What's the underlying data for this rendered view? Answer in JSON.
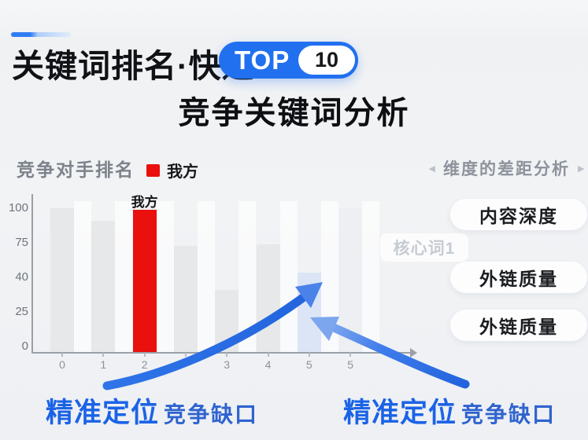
{
  "header": {
    "title": "关键词排名·快速",
    "top_badge": {
      "label": "TOP",
      "number": "10"
    },
    "subtitle": "竞争关键词分析"
  },
  "chart_data": {
    "type": "bar",
    "title": "竞争对手排名",
    "legend": [
      {
        "name": "我方",
        "color": "#e9100e"
      }
    ],
    "legend_position": "top",
    "grid": false,
    "ylim": [
      0,
      100
    ],
    "y_tick_labels": [
      "100",
      "75",
      "40",
      "25",
      "0"
    ],
    "x_tick_labels": [
      "0",
      "1",
      "2",
      "",
      "3",
      "4",
      "5",
      "5",
      ""
    ],
    "bars": [
      {
        "x_label": "0",
        "value": 100,
        "series": "competitor"
      },
      {
        "x_label": "1",
        "value": 91,
        "series": "competitor"
      },
      {
        "x_label": "2",
        "value": 99,
        "series": "ours",
        "label": "我方"
      },
      {
        "x_label": "",
        "value": 74,
        "series": "competitor"
      },
      {
        "x_label": "3",
        "value": 43,
        "series": "competitor"
      },
      {
        "x_label": "4",
        "value": 75,
        "series": "competitor"
      },
      {
        "x_label": "5",
        "value": 55,
        "series": "highlight"
      },
      {
        "x_label": "5",
        "value": 100,
        "series": "ghost"
      }
    ]
  },
  "dimension_panel": {
    "title": "维度的差距分析",
    "left_arrow_icon": "◀",
    "right_arrow_icon": "▶",
    "items": [
      "内容深度",
      "外链质量",
      "外链质量"
    ],
    "floating_tag": "核心词1"
  },
  "annotations": [
    {
      "highlight": "精准定位",
      "rest": "竞争缺口"
    },
    {
      "highlight": "精准定位",
      "rest": "竞争缺口"
    }
  ],
  "colors": {
    "accent_blue": "#2f7bf2",
    "badge_blue": "#2170f0",
    "our_red": "#e9100e",
    "bar_gray": "#e6e8ea",
    "bar_highlight_blue": "#dce5f6",
    "bar_ghost_gray": "#edeff2",
    "arrow_blue": "#2b6fe6",
    "arrow_blue_light": "#8fb1f0",
    "annotation_blue": "#1b63e6",
    "annotation_blue_dark": "#2f63cf",
    "axis_gray": "#9aa0a8",
    "panel_title_gray": "#7d838b",
    "dim_header_gray": "#8d939c",
    "faint_tag_gray": "#c6cbd2",
    "title_black": "#111215"
  }
}
